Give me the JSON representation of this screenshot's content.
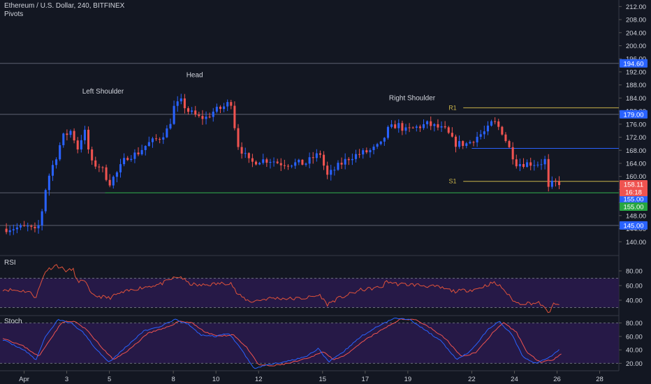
{
  "header": {
    "title": "Ethereum / U.S. Dollar, 240, BITFINEX",
    "indicator": "Pivots"
  },
  "colors": {
    "background": "#131722",
    "grid": "#2a2e39",
    "text": "#d1d4dc",
    "up": "#2962ff",
    "down": "#ef5350",
    "rsi_line": "#e0523a",
    "stoch_k": "#2962ff",
    "stoch_d": "#ef5350",
    "osc_fill": "#2a1a4d",
    "pivot": "#c9b34a",
    "support_green": "#26a641",
    "resistance_blue": "#2962ff"
  },
  "chart_data": [
    {
      "type": "candlestick",
      "title": "Ethereum / U.S. Dollar, 240, BITFINEX",
      "ylim": [
        136,
        214
      ],
      "y_ticks": [
        140,
        144,
        148,
        152,
        156,
        160,
        164,
        168,
        172,
        176,
        180,
        184,
        188,
        192,
        196,
        200,
        204,
        208,
        212
      ],
      "x_ticks": [
        "Apr",
        "3",
        "5",
        "8",
        "10",
        "12",
        "15",
        "17",
        "19",
        "22",
        "24",
        "26",
        "28"
      ],
      "x_tick_values": [
        1,
        3,
        5,
        8,
        10,
        12,
        15,
        17,
        19,
        22,
        24,
        26,
        28
      ],
      "xlim": [
        0,
        28.9
      ],
      "waypoints": [
        [
          0,
          144
        ],
        [
          1.2,
          144.5
        ],
        [
          1.55,
          143
        ],
        [
          1.75,
          146
        ],
        [
          2.0,
          156
        ],
        [
          2.2,
          161
        ],
        [
          2.5,
          166
        ],
        [
          2.8,
          172
        ],
        [
          3.2,
          174
        ],
        [
          3.55,
          168
        ],
        [
          3.8,
          175
        ],
        [
          4.15,
          164
        ],
        [
          4.6,
          163
        ],
        [
          5.0,
          158
        ],
        [
          5.35,
          161
        ],
        [
          5.8,
          166
        ],
        [
          6.3,
          167
        ],
        [
          6.8,
          170
        ],
        [
          7.4,
          172
        ],
        [
          7.8,
          175
        ],
        [
          8.0,
          181
        ],
        [
          8.35,
          183
        ],
        [
          8.7,
          180
        ],
        [
          9.2,
          178
        ],
        [
          9.55,
          178
        ],
        [
          9.9,
          180
        ],
        [
          10.3,
          181
        ],
        [
          10.7,
          183
        ],
        [
          11.0,
          170
        ],
        [
          11.6,
          164
        ],
        [
          12.0,
          165
        ],
        [
          12.6,
          165
        ],
        [
          13.0,
          164
        ],
        [
          13.6,
          164
        ],
        [
          14.2,
          164
        ],
        [
          14.6,
          166
        ],
        [
          14.9,
          167
        ],
        [
          15.2,
          160
        ],
        [
          15.7,
          163
        ],
        [
          16.3,
          166
        ],
        [
          16.8,
          167
        ],
        [
          17.3,
          168
        ],
        [
          17.8,
          170
        ],
        [
          18.0,
          174
        ],
        [
          18.5,
          176
        ],
        [
          18.9,
          174
        ],
        [
          19.4,
          175
        ],
        [
          19.9,
          176
        ],
        [
          20.4,
          175
        ],
        [
          20.8,
          174
        ],
        [
          21.2,
          170
        ],
        [
          21.8,
          170
        ],
        [
          22.2,
          172
        ],
        [
          22.7,
          174
        ],
        [
          23.0,
          177
        ],
        [
          23.4,
          174
        ],
        [
          23.8,
          168
        ],
        [
          24.1,
          164
        ],
        [
          24.7,
          164
        ],
        [
          25.2,
          164
        ],
        [
          25.45,
          165
        ],
        [
          25.6,
          156
        ],
        [
          25.8,
          158
        ],
        [
          26.1,
          158.1
        ]
      ],
      "levels": [
        {
          "name": "high-line",
          "value": 194.6,
          "label": "194.60",
          "color": "#2962ff",
          "filled": true
        },
        {
          "name": "R1-line",
          "value": 181,
          "label": "",
          "color": "#c9b34a"
        },
        {
          "name": "resistance-line",
          "value": 179,
          "label": "179.00",
          "color": "#2962ff",
          "filled": true
        },
        {
          "name": "mid-resistance-line",
          "value": 168.6,
          "label": "",
          "color": "#2962ff"
        },
        {
          "name": "S1-line",
          "value": 158.5,
          "label": "",
          "color": "#c9b34a"
        },
        {
          "name": "support-line",
          "value": 155,
          "label": "155.00",
          "color": "#2962ff",
          "filled": true
        },
        {
          "name": "green-support-line",
          "value": 155,
          "label": "155.00",
          "color": "#26a641",
          "filled": true
        },
        {
          "name": "low-line",
          "value": 145,
          "label": "145.00",
          "color": "#2962ff",
          "filled": true
        }
      ],
      "price_tags": [
        {
          "name": "last-price-tag",
          "value": 158.11,
          "label": "158.11",
          "color": "#ef5350"
        },
        {
          "name": "countdown-tag",
          "value": 156.5,
          "label": "16:18",
          "color": "#ef5350"
        }
      ],
      "annotations": [
        {
          "text": "Left Shoulder",
          "x": 4.7,
          "y": 186
        },
        {
          "text": "Head",
          "x": 9.0,
          "y": 191
        },
        {
          "text": "Right Shoulder",
          "x": 19.2,
          "y": 184
        },
        {
          "text": "R1",
          "x": 21.1,
          "y": 181
        },
        {
          "text": "S1",
          "x": 21.1,
          "y": 158.5
        }
      ]
    },
    {
      "type": "line",
      "title": "RSI",
      "ylim": [
        20,
        100
      ],
      "y_ticks": [
        40,
        60,
        80
      ],
      "bands": [
        30,
        70
      ],
      "waypoints": [
        [
          0,
          55
        ],
        [
          1.2,
          52
        ],
        [
          1.55,
          44
        ],
        [
          2.0,
          80
        ],
        [
          2.5,
          88
        ],
        [
          3.0,
          80
        ],
        [
          3.3,
          82
        ],
        [
          3.55,
          62
        ],
        [
          3.8,
          70
        ],
        [
          4.15,
          47
        ],
        [
          5.0,
          43
        ],
        [
          5.35,
          48
        ],
        [
          6.3,
          56
        ],
        [
          7.4,
          62
        ],
        [
          8.0,
          70
        ],
        [
          8.35,
          72
        ],
        [
          8.7,
          63
        ],
        [
          9.2,
          60
        ],
        [
          9.9,
          62
        ],
        [
          10.7,
          64
        ],
        [
          11.0,
          48
        ],
        [
          11.6,
          38
        ],
        [
          12.6,
          43
        ],
        [
          13.6,
          42
        ],
        [
          14.2,
          43
        ],
        [
          14.9,
          47
        ],
        [
          15.2,
          34
        ],
        [
          15.7,
          42
        ],
        [
          16.8,
          54
        ],
        [
          17.8,
          58
        ],
        [
          18.0,
          66
        ],
        [
          18.5,
          62
        ],
        [
          19.4,
          61
        ],
        [
          20.4,
          58
        ],
        [
          21.2,
          52
        ],
        [
          22.2,
          55
        ],
        [
          23.0,
          64
        ],
        [
          23.4,
          58
        ],
        [
          23.8,
          44
        ],
        [
          24.1,
          36
        ],
        [
          25.2,
          36
        ],
        [
          25.6,
          22
        ],
        [
          25.8,
          34
        ],
        [
          26.1,
          33
        ]
      ]
    },
    {
      "type": "line",
      "title": "Stoch",
      "ylim": [
        10,
        90
      ],
      "y_ticks": [
        20,
        40,
        60,
        80
      ],
      "bands": [
        20,
        80
      ],
      "series": [
        {
          "name": "",
          "waypoints": [
            [
              0,
              55
            ],
            [
              1.0,
              40
            ],
            [
              1.55,
              25
            ],
            [
              2.0,
              60
            ],
            [
              2.6,
              85
            ],
            [
              3.2,
              80
            ],
            [
              3.8,
              65
            ],
            [
              4.4,
              40
            ],
            [
              5.0,
              22
            ],
            [
              5.8,
              45
            ],
            [
              6.6,
              68
            ],
            [
              7.4,
              75
            ],
            [
              8.1,
              85
            ],
            [
              8.7,
              78
            ],
            [
              9.3,
              62
            ],
            [
              10.0,
              60
            ],
            [
              10.6,
              65
            ],
            [
              11.2,
              40
            ],
            [
              11.8,
              12
            ],
            [
              12.4,
              18
            ],
            [
              13.2,
              22
            ],
            [
              14.2,
              30
            ],
            [
              14.8,
              42
            ],
            [
              15.3,
              22
            ],
            [
              15.9,
              35
            ],
            [
              16.8,
              60
            ],
            [
              17.6,
              75
            ],
            [
              18.4,
              88
            ],
            [
              19.1,
              85
            ],
            [
              19.8,
              70
            ],
            [
              20.6,
              52
            ],
            [
              21.3,
              25
            ],
            [
              22.0,
              40
            ],
            [
              22.8,
              72
            ],
            [
              23.3,
              82
            ],
            [
              23.9,
              62
            ],
            [
              24.4,
              30
            ],
            [
              25.0,
              20
            ],
            [
              25.6,
              28
            ],
            [
              26.1,
              40
            ]
          ]
        },
        {
          "name": "",
          "waypoints": [
            [
              0,
              58
            ],
            [
              1.0,
              45
            ],
            [
              1.7,
              30
            ],
            [
              2.2,
              55
            ],
            [
              2.8,
              82
            ],
            [
              3.4,
              82
            ],
            [
              4.0,
              68
            ],
            [
              4.6,
              45
            ],
            [
              5.2,
              25
            ],
            [
              6.0,
              42
            ],
            [
              6.8,
              65
            ],
            [
              7.6,
              72
            ],
            [
              8.3,
              83
            ],
            [
              8.9,
              80
            ],
            [
              9.5,
              66
            ],
            [
              10.2,
              60
            ],
            [
              10.8,
              63
            ],
            [
              11.4,
              45
            ],
            [
              12.0,
              18
            ],
            [
              12.6,
              16
            ],
            [
              13.4,
              20
            ],
            [
              14.4,
              28
            ],
            [
              15.0,
              38
            ],
            [
              15.5,
              26
            ],
            [
              16.1,
              32
            ],
            [
              17.0,
              55
            ],
            [
              17.8,
              70
            ],
            [
              18.6,
              85
            ],
            [
              19.3,
              86
            ],
            [
              20.0,
              74
            ],
            [
              20.8,
              56
            ],
            [
              21.5,
              30
            ],
            [
              22.2,
              36
            ],
            [
              23.0,
              66
            ],
            [
              23.5,
              80
            ],
            [
              24.1,
              66
            ],
            [
              24.6,
              36
            ],
            [
              25.2,
              22
            ],
            [
              25.8,
              25
            ],
            [
              26.2,
              35
            ]
          ]
        }
      ]
    }
  ]
}
